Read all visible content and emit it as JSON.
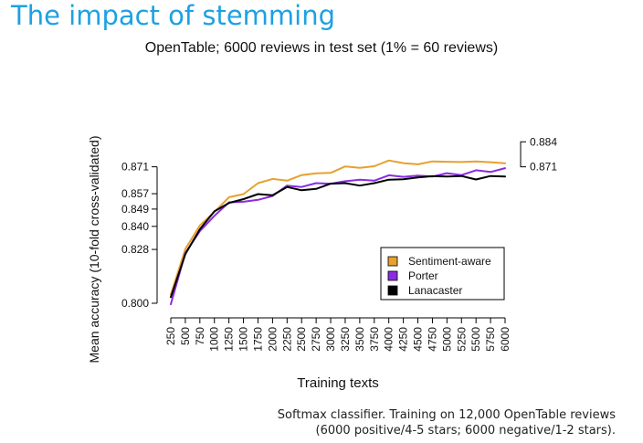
{
  "slide": {
    "title": "The impact of stemming",
    "caption_line1": "Softmax classifier. Training on 12,000 OpenTable reviews",
    "caption_line2": "(6000 positive/4-5 stars; 6000 negative/1-2 stars)."
  },
  "chart_data": {
    "type": "line",
    "title": "OpenTable; 6000 reviews in test set (1% = 60 reviews)",
    "xlabel": "Training texts",
    "ylabel": "Mean accuracy (10-fold cross-validated)",
    "x": [
      250,
      500,
      750,
      1000,
      1250,
      1500,
      1750,
      2000,
      2250,
      2500,
      2750,
      3000,
      3250,
      3500,
      3750,
      4000,
      4250,
      4500,
      4750,
      5000,
      5250,
      5500,
      5750,
      6000
    ],
    "x_tick_labels": [
      "250",
      "500",
      "750",
      "1000",
      "1250",
      "1500",
      "1750",
      "2000",
      "2250",
      "2500",
      "2750",
      "3000",
      "3250",
      "3500",
      "3750",
      "4000",
      "4250",
      "4500",
      "4750",
      "5000",
      "5250",
      "5500",
      "5750",
      "6000"
    ],
    "xlim": [
      250,
      6000
    ],
    "ylim": [
      0.8,
      0.8884
    ],
    "y_ticks": [
      0.8,
      0.828,
      0.84,
      0.849,
      0.857,
      0.871
    ],
    "y_tick_labels": [
      "0.800",
      "0.828",
      "0.840",
      "0.849",
      "0.857",
      "0.871"
    ],
    "right_annotations": [
      {
        "value": 0.884,
        "label": "0.884"
      },
      {
        "value": 0.871,
        "label": "0.871"
      }
    ],
    "legend_position": "bottom-right",
    "grid": false,
    "series": [
      {
        "name": "Sentiment-aware",
        "color": "#e6a12e",
        "values": [
          0.8045,
          0.8282,
          0.8405,
          0.8475,
          0.8552,
          0.8568,
          0.8625,
          0.8647,
          0.8638,
          0.8667,
          0.8676,
          0.8678,
          0.8712,
          0.8705,
          0.8713,
          0.8743,
          0.8729,
          0.8723,
          0.8738,
          0.8736,
          0.8735,
          0.8738,
          0.8734,
          0.8728
        ]
      },
      {
        "name": "Porter",
        "color": "#8a2be2",
        "values": [
          0.7995,
          0.8262,
          0.8375,
          0.8455,
          0.8525,
          0.8528,
          0.8538,
          0.8558,
          0.8612,
          0.8605,
          0.8625,
          0.8622,
          0.8635,
          0.8643,
          0.8638,
          0.8666,
          0.8658,
          0.8664,
          0.8659,
          0.8677,
          0.8667,
          0.8692,
          0.8683,
          0.8703
        ]
      },
      {
        "name": "Lanacaster",
        "color": "#000000",
        "values": [
          0.8032,
          0.8255,
          0.8385,
          0.8478,
          0.8522,
          0.8542,
          0.8568,
          0.8562,
          0.8605,
          0.8588,
          0.8595,
          0.8622,
          0.8625,
          0.8612,
          0.8625,
          0.8643,
          0.8645,
          0.8655,
          0.8661,
          0.8659,
          0.8662,
          0.8644,
          0.8662,
          0.8659
        ]
      }
    ]
  }
}
